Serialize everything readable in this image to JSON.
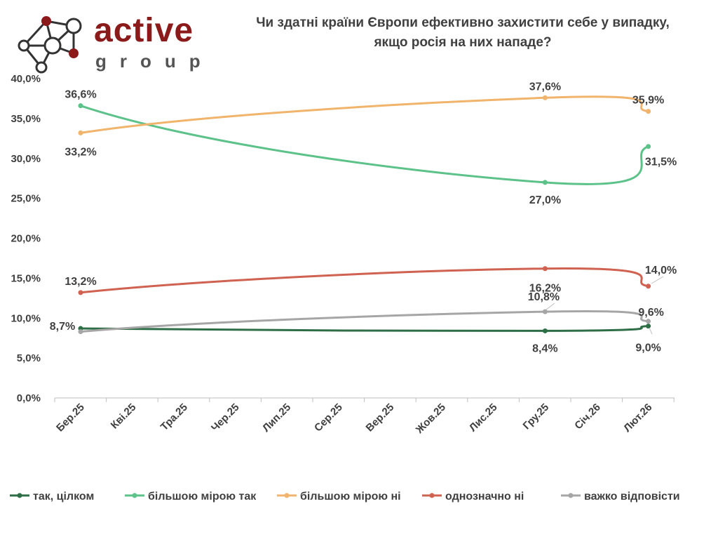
{
  "logo": {
    "word_main": "active",
    "word_sub": "group",
    "brand_color": "#8b1a1a"
  },
  "chart_data": {
    "type": "line",
    "title_lines": [
      "Чи здатні країни Європи ефективно захистити себе у випадку,",
      "якщо росія на них нападе?"
    ],
    "categories": [
      "Бер.25",
      "Кві.25",
      "Тра.25",
      "Чер.25",
      "Лип.25",
      "Сер.25",
      "Вер.25",
      "Жов.25",
      "Лис.25",
      "Гру.25",
      "Січ.26",
      "Лют.26"
    ],
    "yticks": [
      "0,0%",
      "5,0%",
      "10,0%",
      "15,0%",
      "20,0%",
      "25,0%",
      "30,0%",
      "35,0%",
      "40,0%"
    ],
    "ylim": [
      0,
      40
    ],
    "series": [
      {
        "name": "так, цілком",
        "color": "#2e6e46",
        "points": [
          [
            0,
            8.7
          ],
          [
            9,
            8.4
          ],
          [
            11,
            9.0
          ]
        ],
        "labels": [
          "8,7%",
          "8,4%",
          "9,0%"
        ]
      },
      {
        "name": "більшою мірою так",
        "color": "#5cc28a",
        "points": [
          [
            0,
            36.6
          ],
          [
            9,
            27.0
          ],
          [
            11,
            31.5
          ]
        ],
        "labels": [
          "36,6%",
          "27,0%",
          "31,5%"
        ]
      },
      {
        "name": "більшою мірою ні",
        "color": "#f0b46c",
        "points": [
          [
            0,
            33.2
          ],
          [
            9,
            37.6
          ],
          [
            11,
            35.9
          ]
        ],
        "labels": [
          "33,2%",
          "37,6%",
          "35,9%"
        ]
      },
      {
        "name": "однозначно ні",
        "color": "#cf6250",
        "points": [
          [
            0,
            13.2
          ],
          [
            9,
            16.2
          ],
          [
            11,
            14.0
          ]
        ],
        "labels": [
          "13,2%",
          "16,2%",
          "14,0%"
        ]
      },
      {
        "name": "важко відповісти",
        "color": "#a6a6a6",
        "points": [
          [
            0,
            8.3
          ],
          [
            9,
            10.8
          ],
          [
            11,
            9.6
          ]
        ],
        "labels": [
          "",
          "10,8%",
          "9,6%"
        ]
      }
    ]
  }
}
